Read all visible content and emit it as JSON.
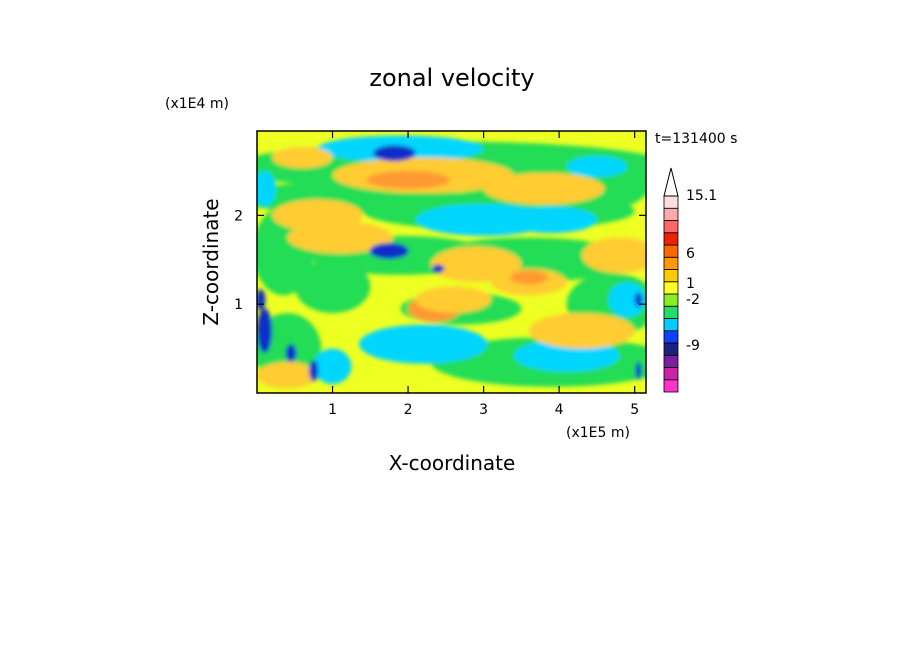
{
  "chart_data": {
    "type": "heatmap",
    "title": "zonal velocity",
    "xlabel": "X-coordinate",
    "ylabel": "Z-coordinate",
    "x_unit": "(x1E5 m)",
    "y_unit": "(x1E4 m)",
    "time_label": "t=131400 s",
    "xlim": [
      0,
      5.15
    ],
    "ylim": [
      0,
      2.95
    ],
    "x_ticks": [
      "1",
      "2",
      "3",
      "4",
      "5"
    ],
    "y_ticks": [
      "1",
      "2"
    ],
    "colorbar": {
      "levels": [
        -12,
        -9,
        -6,
        -2,
        0,
        1,
        2,
        4,
        6,
        8,
        10,
        12,
        15.1
      ],
      "tick_labels": [
        "15.1",
        "6",
        "1",
        "-2",
        "-9"
      ],
      "colors": [
        "#ff33cc",
        "#cc22aa",
        "#7a1fa2",
        "#1a237e",
        "#1040ff",
        "#00ccff",
        "#22dd66",
        "#88ee22",
        "#ffff22",
        "#ffcc00",
        "#ff9900",
        "#ff6600",
        "#ee2200",
        "#ff6666",
        "#ffaaaa",
        "#ffdddd"
      ]
    },
    "field_colors": {
      "dark_blue": "#0a2fc8",
      "cyan": "#00d6ff",
      "green": "#22dd55",
      "yellow": "#eeff22",
      "light_orange": "#ffcc33",
      "orange": "#ff9933",
      "magenta": "#cc22aa"
    }
  }
}
